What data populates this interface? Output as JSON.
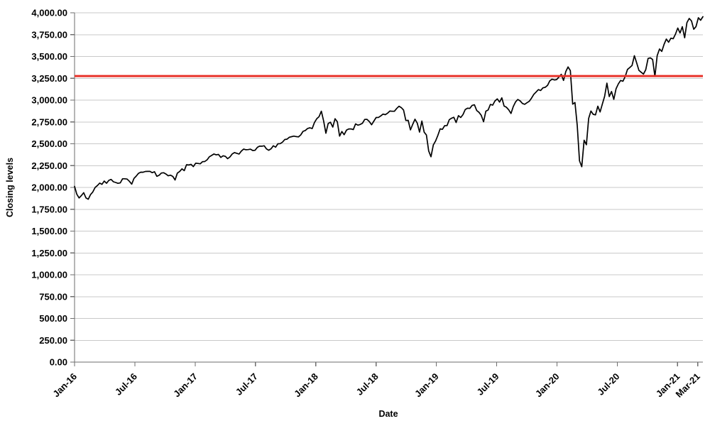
{
  "chart_data": {
    "type": "line",
    "title": "",
    "xlabel": "Date",
    "ylabel": "Closing levels",
    "xlim": [
      2016.0,
      2021.21
    ],
    "ylim": [
      0,
      4000
    ],
    "grid": "horizontal",
    "legend": "none",
    "x_ticks": [
      {
        "x": 2016.0,
        "label": "Jan-16"
      },
      {
        "x": 2016.5,
        "label": "Jul-16"
      },
      {
        "x": 2017.0,
        "label": "Jan-17"
      },
      {
        "x": 2017.5,
        "label": "Jul-17"
      },
      {
        "x": 2018.0,
        "label": "Jan-18"
      },
      {
        "x": 2018.5,
        "label": "Jul-18"
      },
      {
        "x": 2019.0,
        "label": "Jan-19"
      },
      {
        "x": 2019.5,
        "label": "Jul-19"
      },
      {
        "x": 2020.0,
        "label": "Jan-20"
      },
      {
        "x": 2020.5,
        "label": "Jul-20"
      },
      {
        "x": 2021.0,
        "label": "Jan-21"
      },
      {
        "x": 2021.167,
        "label": "Mar-21"
      }
    ],
    "y_ticks": [
      {
        "value": 0,
        "label": "0.00"
      },
      {
        "value": 250,
        "label": "250.00"
      },
      {
        "value": 500,
        "label": "500.00"
      },
      {
        "value": 750,
        "label": "750.00"
      },
      {
        "value": 1000,
        "label": "1,000.00"
      },
      {
        "value": 1250,
        "label": "1,250.00"
      },
      {
        "value": 1500,
        "label": "1,500.00"
      },
      {
        "value": 1750,
        "label": "1,750.00"
      },
      {
        "value": 2000,
        "label": "2,000.00"
      },
      {
        "value": 2250,
        "label": "2,250.00"
      },
      {
        "value": 2500,
        "label": "2,500.00"
      },
      {
        "value": 2750,
        "label": "2,750.00"
      },
      {
        "value": 3000,
        "label": "3,000.00"
      },
      {
        "value": 3250,
        "label": "3,250.00"
      },
      {
        "value": 3500,
        "label": "3,500.00"
      },
      {
        "value": 3750,
        "label": "3,750.00"
      },
      {
        "value": 4000,
        "label": "4,000.00"
      }
    ],
    "reference_line": {
      "value": 3275,
      "color": "#e8332a"
    },
    "series": [
      {
        "name": "Closing levels",
        "color": "#000000",
        "x_start": 2016.0,
        "x_end": 2021.21,
        "values": [
          2012,
          1922,
          1880,
          1907,
          1940,
          1880,
          1865,
          1918,
          1948,
          2000,
          2022,
          2050,
          2036,
          2073,
          2048,
          2081,
          2092,
          2065,
          2057,
          2047,
          2052,
          2099,
          2099,
          2096,
          2071,
          2037,
          2103,
          2130,
          2162,
          2175,
          2174,
          2183,
          2184,
          2184,
          2169,
          2180,
          2128,
          2139,
          2165,
          2168,
          2154,
          2133,
          2141,
          2126,
          2085,
          2164,
          2182,
          2213,
          2192,
          2260,
          2258,
          2264,
          2239,
          2277,
          2275,
          2271,
          2295,
          2297,
          2316,
          2351,
          2367,
          2383,
          2373,
          2378,
          2344,
          2363,
          2356,
          2329,
          2349,
          2384,
          2399,
          2391,
          2382,
          2416,
          2439,
          2432,
          2433,
          2438,
          2423,
          2425,
          2459,
          2473,
          2472,
          2477,
          2441,
          2426,
          2443,
          2477,
          2461,
          2500,
          2502,
          2519,
          2549,
          2553,
          2575,
          2581,
          2588,
          2582,
          2579,
          2602,
          2642,
          2652,
          2676,
          2683,
          2674,
          2743,
          2786,
          2810,
          2873,
          2762,
          2620,
          2732,
          2747,
          2691,
          2787,
          2752,
          2588,
          2641,
          2604,
          2656,
          2670,
          2670,
          2663,
          2728,
          2713,
          2721,
          2735,
          2779,
          2780,
          2755,
          2718,
          2760,
          2801,
          2802,
          2819,
          2840,
          2833,
          2850,
          2875,
          2872,
          2872,
          2905,
          2930,
          2914,
          2886,
          2767,
          2768,
          2659,
          2723,
          2781,
          2736,
          2633,
          2760,
          2633,
          2600,
          2417,
          2351,
          2486,
          2532,
          2596,
          2671,
          2665,
          2707,
          2708,
          2776,
          2793,
          2803,
          2743,
          2822,
          2801,
          2834,
          2893,
          2907,
          2905,
          2940,
          2946,
          2881,
          2860,
          2826,
          2752,
          2873,
          2887,
          2950,
          2942,
          2990,
          3014,
          2977,
          3026,
          2932,
          2919,
          2889,
          2847,
          2926,
          2979,
          3007,
          2992,
          2962,
          2952,
          2970,
          2986,
          3023,
          3067,
          3093,
          3120,
          3110,
          3141,
          3146,
          3169,
          3221,
          3240,
          3231,
          3235,
          3265,
          3295,
          3225,
          3327,
          3380,
          3338,
          2954,
          2972,
          2711,
          2305,
          2237,
          2541,
          2489,
          2790,
          2875,
          2837,
          2831,
          2930,
          2864,
          2955,
          3044,
          3194,
          3041,
          3098,
          3009,
          3130,
          3185,
          3225,
          3216,
          3271,
          3351,
          3373,
          3397,
          3508,
          3427,
          3341,
          3319,
          3298,
          3348,
          3477,
          3484,
          3465,
          3270,
          3509,
          3585,
          3558,
          3638,
          3699,
          3663,
          3709,
          3703,
          3756,
          3825,
          3768,
          3841,
          3714,
          3887,
          3935,
          3907,
          3811,
          3842,
          3943,
          3915,
          3955
        ]
      }
    ]
  }
}
